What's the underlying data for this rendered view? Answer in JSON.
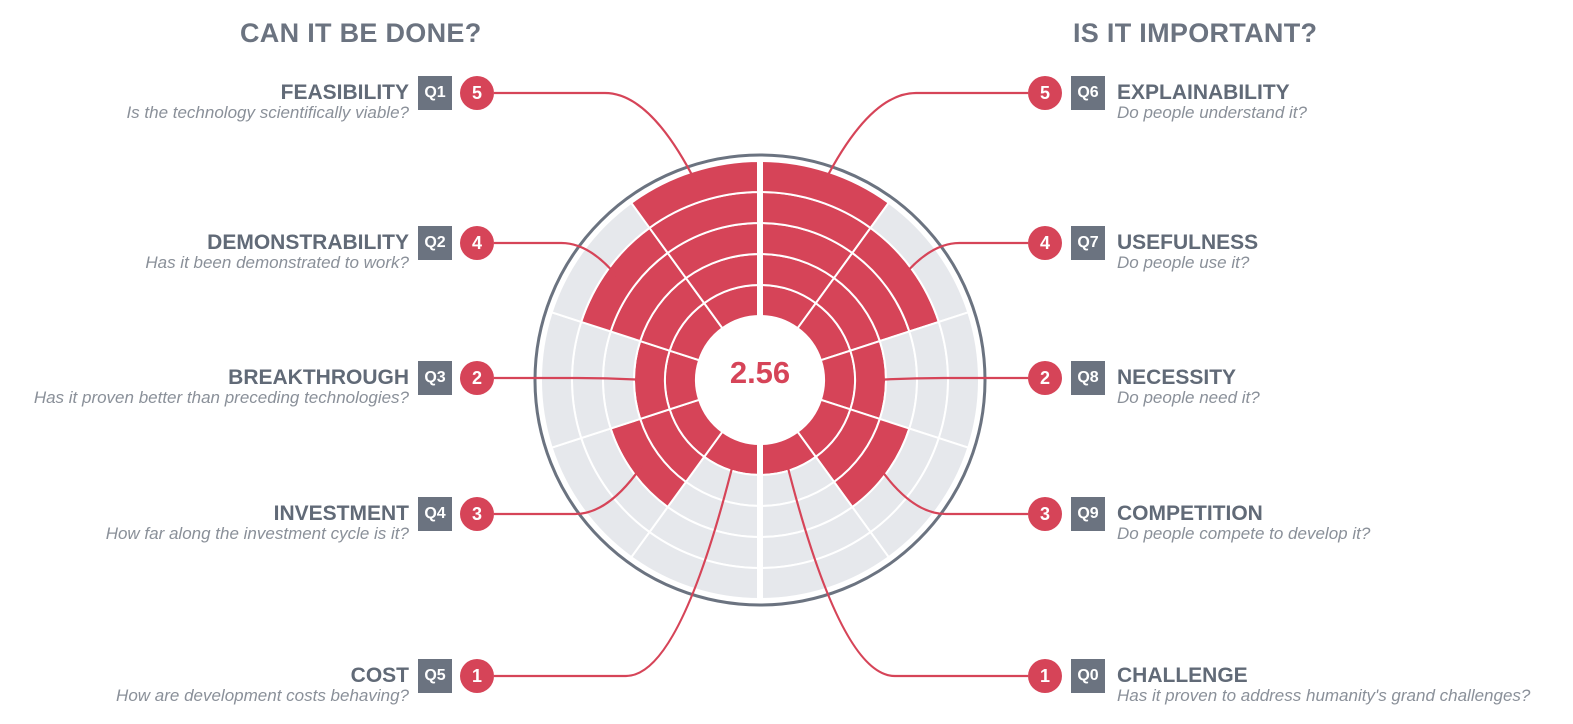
{
  "headings": {
    "left": "CAN IT BE DONE?",
    "right": "IS IT IMPORTANT?"
  },
  "chart_data": {
    "type": "radial-bar",
    "title": "",
    "center_value": "2.56",
    "max_score": 5,
    "colors": {
      "filled": "#d64458",
      "empty": "#e6e8ec",
      "ring": "#6b7380",
      "text": "#616a77"
    },
    "items": [
      {
        "code": "Q1",
        "label": "FEASIBILITY",
        "question": "Is the technology scientifically viable?",
        "score": 5
      },
      {
        "code": "Q2",
        "label": "DEMONSTRABILITY",
        "question": "Has it been demonstrated to work?",
        "score": 4
      },
      {
        "code": "Q3",
        "label": "BREAKTHROUGH",
        "question": "Has it proven better than preceding technologies?",
        "score": 2
      },
      {
        "code": "Q4",
        "label": "INVESTMENT",
        "question": "How far along the investment cycle is it?",
        "score": 3
      },
      {
        "code": "Q5",
        "label": "COST",
        "question": "How are development costs behaving?",
        "score": 1
      },
      {
        "code": "Q6",
        "label": "EXPLAINABILITY",
        "question": "Do people understand it?",
        "score": 5
      },
      {
        "code": "Q7",
        "label": "USEFULNESS",
        "question": "Do people use it?",
        "score": 4
      },
      {
        "code": "Q8",
        "label": "NECESSITY",
        "question": "Do people need it?",
        "score": 2
      },
      {
        "code": "Q9",
        "label": "COMPETITION",
        "question": "Do people compete to develop it?",
        "score": 3
      },
      {
        "code": "Q0",
        "label": "CHALLENGE",
        "question": "Has it proven to address humanity's grand challenges?",
        "score": 1
      }
    ]
  }
}
